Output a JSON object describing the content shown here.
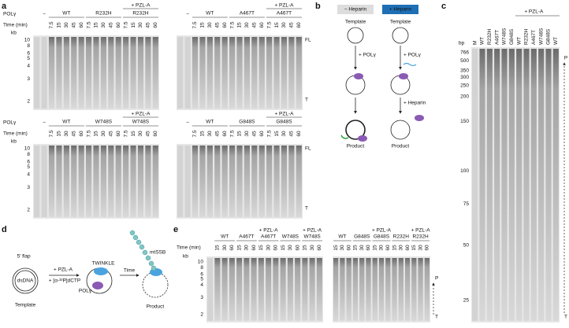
{
  "panel_labels": [
    "a",
    "b",
    "c",
    "d",
    "e"
  ],
  "a": {
    "polg": "POLγ",
    "time_label": "Time (min)",
    "kb": "kb",
    "times": [
      "7.5",
      "15",
      "30",
      "45",
      "60"
    ],
    "ladder": [
      "10",
      "8",
      "6",
      "5",
      "4",
      "3",
      "2"
    ],
    "fl": "FL",
    "t": "T",
    "blank": "−",
    "pzl": "+ PZL-A",
    "gels": [
      [
        "WT",
        "R232H",
        "R232H"
      ],
      [
        "WT",
        "A467T",
        "A467T"
      ],
      [
        "WT",
        "W748S",
        "W748S"
      ],
      [
        "WT",
        "G848S",
        "G848S"
      ]
    ]
  },
  "b": {
    "minus": "− Heparin",
    "plus": "+ Heparin",
    "template": "Template",
    "polg": "+ POLγ",
    "heparin": "+ Heparin",
    "product": "Product"
  },
  "c": {
    "bp": "bp",
    "ladder": [
      "766",
      "500",
      "350",
      "300",
      "250",
      "200",
      "150",
      "100",
      "75",
      "50",
      "25"
    ],
    "lanes": [
      "M",
      "WT",
      "R232H",
      "A467T",
      "W748S",
      "G848S",
      "WT",
      "R232H",
      "A467T",
      "W748S",
      "G848S",
      "WT"
    ],
    "pzl": "+ PZL-A",
    "p": "P",
    "t": "T"
  },
  "d": {
    "flap": "5′ flap",
    "dsdna": "dsDNA",
    "template": "Template",
    "pzl": "+ PZL-A",
    "dctp": "+ [α-³²P]dCTP",
    "twinkle": "TWINKLE",
    "polg": "POLγ",
    "time": "Time",
    "mtssb": "mtSSB",
    "product": "Product"
  },
  "e": {
    "time_label": "Time (min)",
    "kb": "kb",
    "ladder": [
      "10",
      "8",
      "6",
      "5",
      "4",
      "3",
      "2"
    ],
    "times": [
      "15",
      "30",
      "60"
    ],
    "pzl": "+ PZL-A",
    "gels": [
      [
        "WT",
        "A467T",
        "A467T",
        "W748S",
        "W748S"
      ],
      [
        "WT",
        "G848S",
        "G848S",
        "R232H",
        "R232H"
      ]
    ],
    "p": "P",
    "t": "T"
  }
}
